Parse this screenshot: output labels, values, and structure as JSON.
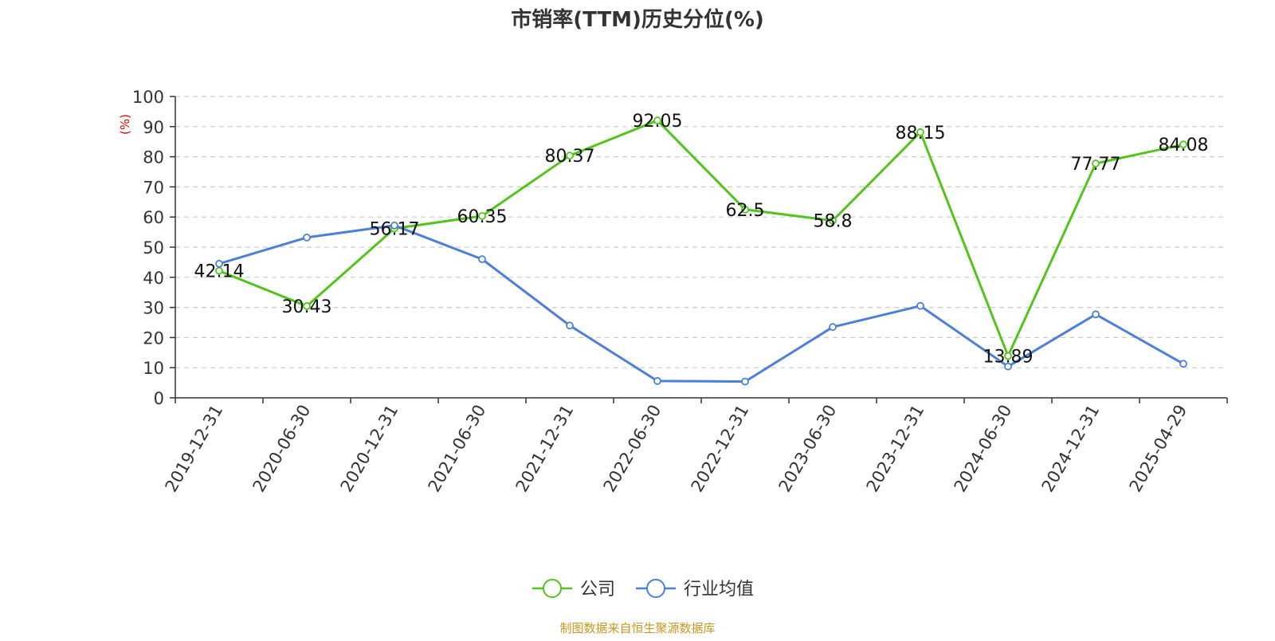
{
  "chart_data": {
    "type": "line",
    "title": "市销率(TTM)历史分位(%)",
    "ylabel": "(%)",
    "xlabel": "",
    "categories": [
      "2019-12-31",
      "2020-06-30",
      "2020-12-31",
      "2021-06-30",
      "2021-12-31",
      "2022-06-30",
      "2022-12-31",
      "2023-06-30",
      "2023-12-31",
      "2024-06-30",
      "2024-12-31",
      "2025-04-29"
    ],
    "ylim": [
      0,
      100
    ],
    "yticks": [
      0,
      10,
      20,
      30,
      40,
      50,
      60,
      70,
      80,
      90,
      100
    ],
    "grid": true,
    "legend_position": "bottom-center",
    "series": [
      {
        "name": "公司",
        "color": "#52c41a",
        "values": [
          42.14,
          30.43,
          56.17,
          60.35,
          80.37,
          92.05,
          62.5,
          58.8,
          88.15,
          13.89,
          77.77,
          84.08
        ],
        "labels": [
          "42.14",
          "30.43",
          "56.17",
          "60.35",
          "80.37",
          "92.05",
          "62.5",
          "58.8",
          "88.15",
          "13.89",
          "77.77",
          "84.08"
        ],
        "show_labels": true
      },
      {
        "name": "行业均值",
        "color": "#4a7fdc",
        "values": [
          44.5,
          53.2,
          57.2,
          46.0,
          24.0,
          5.6,
          5.4,
          23.5,
          30.5,
          10.4,
          27.7,
          11.3
        ],
        "show_labels": false
      }
    ],
    "source": "制图数据来自恒生聚源数据库",
    "colors": {
      "title": "#333333",
      "ylabel": "#e00000",
      "axis": "#333333",
      "grid": "#cccccc",
      "label": "#111111",
      "source": "#c8961e"
    }
  }
}
